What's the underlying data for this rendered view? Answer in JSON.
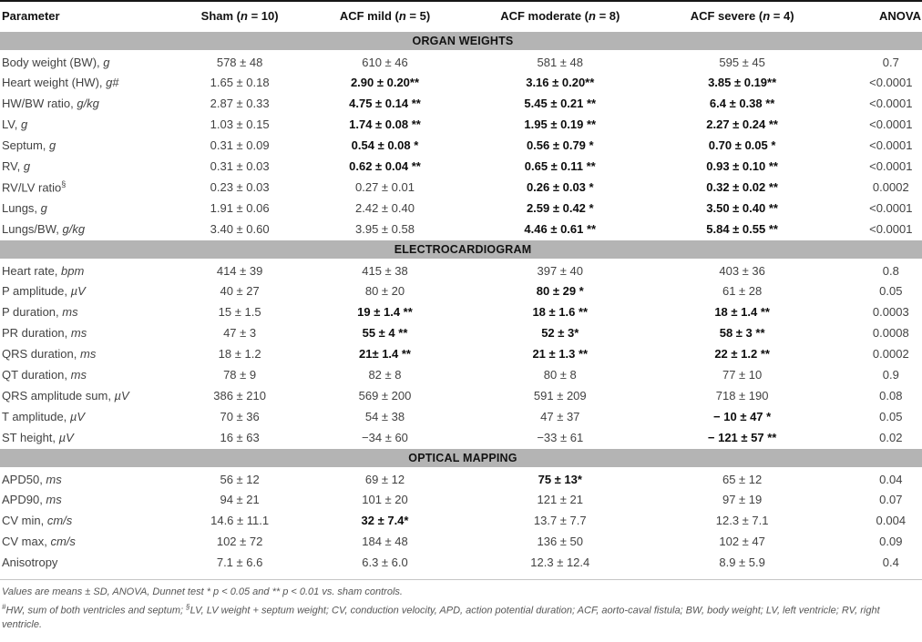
{
  "table": {
    "columns": [
      {
        "label": "Parameter"
      },
      {
        "pre": "Sham (",
        "n": "n",
        "post": " = 10)"
      },
      {
        "pre": "ACF mild (",
        "n": "n",
        "post": " = 5)"
      },
      {
        "pre": "ACF moderate (",
        "n": "n",
        "post": " = 8)"
      },
      {
        "pre": "ACF severe (",
        "n": "n",
        "post": " = 4)"
      },
      {
        "label": "ANOVA"
      }
    ],
    "sections": [
      {
        "title": "ORGAN WEIGHTS",
        "rows": [
          {
            "param": {
              "text": "Body weight (BW), ",
              "unit": "g"
            },
            "values": [
              "578 ± 48",
              "610 ± 46",
              "581 ± 48",
              "595 ± 45"
            ],
            "bold": [
              false,
              false,
              false,
              false
            ],
            "anova": "0.7"
          },
          {
            "param": {
              "text": "Heart weight (HW), ",
              "unit": "g",
              "suffix": "#"
            },
            "values": [
              "1.65 ± 0.18",
              "2.90 ± 0.20**",
              "3.16 ± 0.20**",
              "3.85 ± 0.19**"
            ],
            "bold": [
              false,
              true,
              true,
              true
            ],
            "anova": "<0.0001"
          },
          {
            "param": {
              "text": "HW/BW ratio, ",
              "unit": "g/kg"
            },
            "values": [
              "2.87 ± 0.33",
              "4.75 ± 0.14 **",
              "5.45 ± 0.21 **",
              "6.4 ± 0.38 **"
            ],
            "bold": [
              false,
              true,
              true,
              true
            ],
            "anova": "<0.0001"
          },
          {
            "param": {
              "text": "LV, ",
              "unit": "g"
            },
            "values": [
              "1.03 ± 0.15",
              "1.74 ± 0.08 **",
              "1.95 ± 0.19 **",
              "2.27 ± 0.24 **"
            ],
            "bold": [
              false,
              true,
              true,
              true
            ],
            "anova": "<0.0001"
          },
          {
            "param": {
              "text": "Septum, ",
              "unit": "g"
            },
            "values": [
              "0.31 ± 0.09",
              "0.54 ± 0.08 *",
              "0.56 ± 0.79 *",
              "0.70 ± 0.05 *"
            ],
            "bold": [
              false,
              true,
              true,
              true
            ],
            "anova": "<0.0001"
          },
          {
            "param": {
              "text": "RV, ",
              "unit": "g"
            },
            "values": [
              "0.31 ± 0.03",
              "0.62 ± 0.04 **",
              "0.65 ± 0.11 **",
              "0.93 ± 0.10 **"
            ],
            "bold": [
              false,
              true,
              true,
              true
            ],
            "anova": "<0.0001"
          },
          {
            "param": {
              "text": "RV/LV ratio",
              "sup": "§"
            },
            "values": [
              "0.23 ± 0.03",
              "0.27 ± 0.01",
              "0.26 ± 0.03 *",
              "0.32 ± 0.02 **"
            ],
            "bold": [
              false,
              false,
              true,
              true
            ],
            "anova": "0.0002"
          },
          {
            "param": {
              "text": "Lungs, ",
              "unit": "g"
            },
            "values": [
              "1.91 ± 0.06",
              "2.42 ± 0.40",
              "2.59 ± 0.42 *",
              "3.50 ± 0.40 **"
            ],
            "bold": [
              false,
              false,
              true,
              true
            ],
            "anova": "<0.0001"
          },
          {
            "param": {
              "text": "Lungs/BW, ",
              "unit": "g/kg"
            },
            "values": [
              "3.40 ± 0.60",
              "3.95 ± 0.58",
              "4.46 ± 0.61 **",
              "5.84 ± 0.55 **"
            ],
            "bold": [
              false,
              false,
              true,
              true
            ],
            "anova": "<0.0001"
          }
        ]
      },
      {
        "title": "ELECTROCARDIOGRAM",
        "rows": [
          {
            "param": {
              "text": "Heart rate, ",
              "unit": "bpm"
            },
            "values": [
              "414 ± 39",
              "415 ± 38",
              "397 ± 40",
              "403 ± 36"
            ],
            "bold": [
              false,
              false,
              false,
              false
            ],
            "anova": "0.8"
          },
          {
            "param": {
              "text": "P amplitude, ",
              "unit": "µV"
            },
            "values": [
              "40 ± 27",
              "80 ± 20",
              "80 ± 29 *",
              "61 ± 28"
            ],
            "bold": [
              false,
              false,
              true,
              false
            ],
            "anova": "0.05"
          },
          {
            "param": {
              "text": "P duration, ",
              "unit": "ms"
            },
            "values": [
              "15 ± 1.5",
              "19 ± 1.4 **",
              "18 ± 1.6 **",
              "18 ± 1.4 **"
            ],
            "bold": [
              false,
              true,
              true,
              true
            ],
            "anova": "0.0003"
          },
          {
            "param": {
              "text": "PR duration, ",
              "unit": "ms"
            },
            "values": [
              "47 ± 3",
              "55 ± 4 **",
              "52 ± 3*",
              "58 ± 3 **"
            ],
            "bold": [
              false,
              true,
              true,
              true
            ],
            "anova": "0.0008"
          },
          {
            "param": {
              "text": "QRS duration, ",
              "unit": "ms"
            },
            "values": [
              "18 ± 1.2",
              "21± 1.4 **",
              "21 ± 1.3 **",
              "22 ± 1.2 **"
            ],
            "bold": [
              false,
              true,
              true,
              true
            ],
            "anova": "0.0002"
          },
          {
            "param": {
              "text": "QT duration, ",
              "unit": "ms"
            },
            "values": [
              "78 ± 9",
              "82 ± 8",
              "80 ± 8",
              "77 ± 10"
            ],
            "bold": [
              false,
              false,
              false,
              false
            ],
            "anova": "0.9"
          },
          {
            "param": {
              "text": "QRS amplitude sum, ",
              "unit": "µV"
            },
            "values": [
              "386 ± 210",
              "569 ± 200",
              "591 ± 209",
              "718 ± 190"
            ],
            "bold": [
              false,
              false,
              false,
              false
            ],
            "anova": "0.08"
          },
          {
            "param": {
              "text": "T amplitude, ",
              "unit": "µV"
            },
            "values": [
              "70 ± 36",
              "54 ± 38",
              "47 ± 37",
              "− 10 ± 47 *"
            ],
            "bold": [
              false,
              false,
              false,
              true
            ],
            "anova": "0.05"
          },
          {
            "param": {
              "text": "ST height, ",
              "unit": "µV"
            },
            "values": [
              "16 ± 63",
              "−34 ± 60",
              "−33 ± 61",
              "− 121 ± 57 **"
            ],
            "bold": [
              false,
              false,
              false,
              true
            ],
            "anova": "0.02"
          }
        ]
      },
      {
        "title": "OPTICAL MAPPING",
        "rows": [
          {
            "param": {
              "text": "APD50, ",
              "unit": "ms"
            },
            "values": [
              "56 ± 12",
              "69 ± 12",
              "75 ± 13*",
              "65 ± 12"
            ],
            "bold": [
              false,
              false,
              true,
              false
            ],
            "anova": "0.04"
          },
          {
            "param": {
              "text": "APD90, ",
              "unit": "ms"
            },
            "values": [
              "94 ± 21",
              "101 ± 20",
              "121 ± 21",
              "97 ± 19"
            ],
            "bold": [
              false,
              false,
              false,
              false
            ],
            "anova": "0.07"
          },
          {
            "param": {
              "text": "CV min, ",
              "unit": "cm/s"
            },
            "values": [
              "14.6 ± 11.1",
              "32 ± 7.4*",
              "13.7 ± 7.7",
              "12.3 ± 7.1"
            ],
            "bold": [
              false,
              true,
              false,
              false
            ],
            "anova": "0.004"
          },
          {
            "param": {
              "text": "CV max, ",
              "unit": "cm/s"
            },
            "values": [
              "102 ± 72",
              "184 ± 48",
              "136 ± 50",
              "102 ± 47"
            ],
            "bold": [
              false,
              false,
              false,
              false
            ],
            "anova": "0.09"
          },
          {
            "param": {
              "text": "Anisotropy"
            },
            "values": [
              "7.1 ± 6.6",
              "6.3 ± 6.0",
              "12.3 ± 12.4",
              "8.9 ± 5.9"
            ],
            "bold": [
              false,
              false,
              false,
              false
            ],
            "anova": "0.4"
          }
        ]
      }
    ]
  },
  "footnotes": {
    "line1": "Values are means ± SD, ANOVA, Dunnet test * p < 0.05 and ** p < 0.01 vs. sham controls.",
    "sup1": "#",
    "line2a": "HW, sum of both ventricles and septum; ",
    "sup2": "§",
    "line2b": "LV, LV weight + septum weight; CV, conduction velocity, APD, action potential duration; ACF, aorto-caval fistula; BW, body weight; LV, left ventricle; RV, right ventricle."
  },
  "colors": {
    "section_band": "#b4b4b4",
    "rule": "#161616",
    "body_text": "#424242",
    "bold_text": "#0d0d0d"
  }
}
